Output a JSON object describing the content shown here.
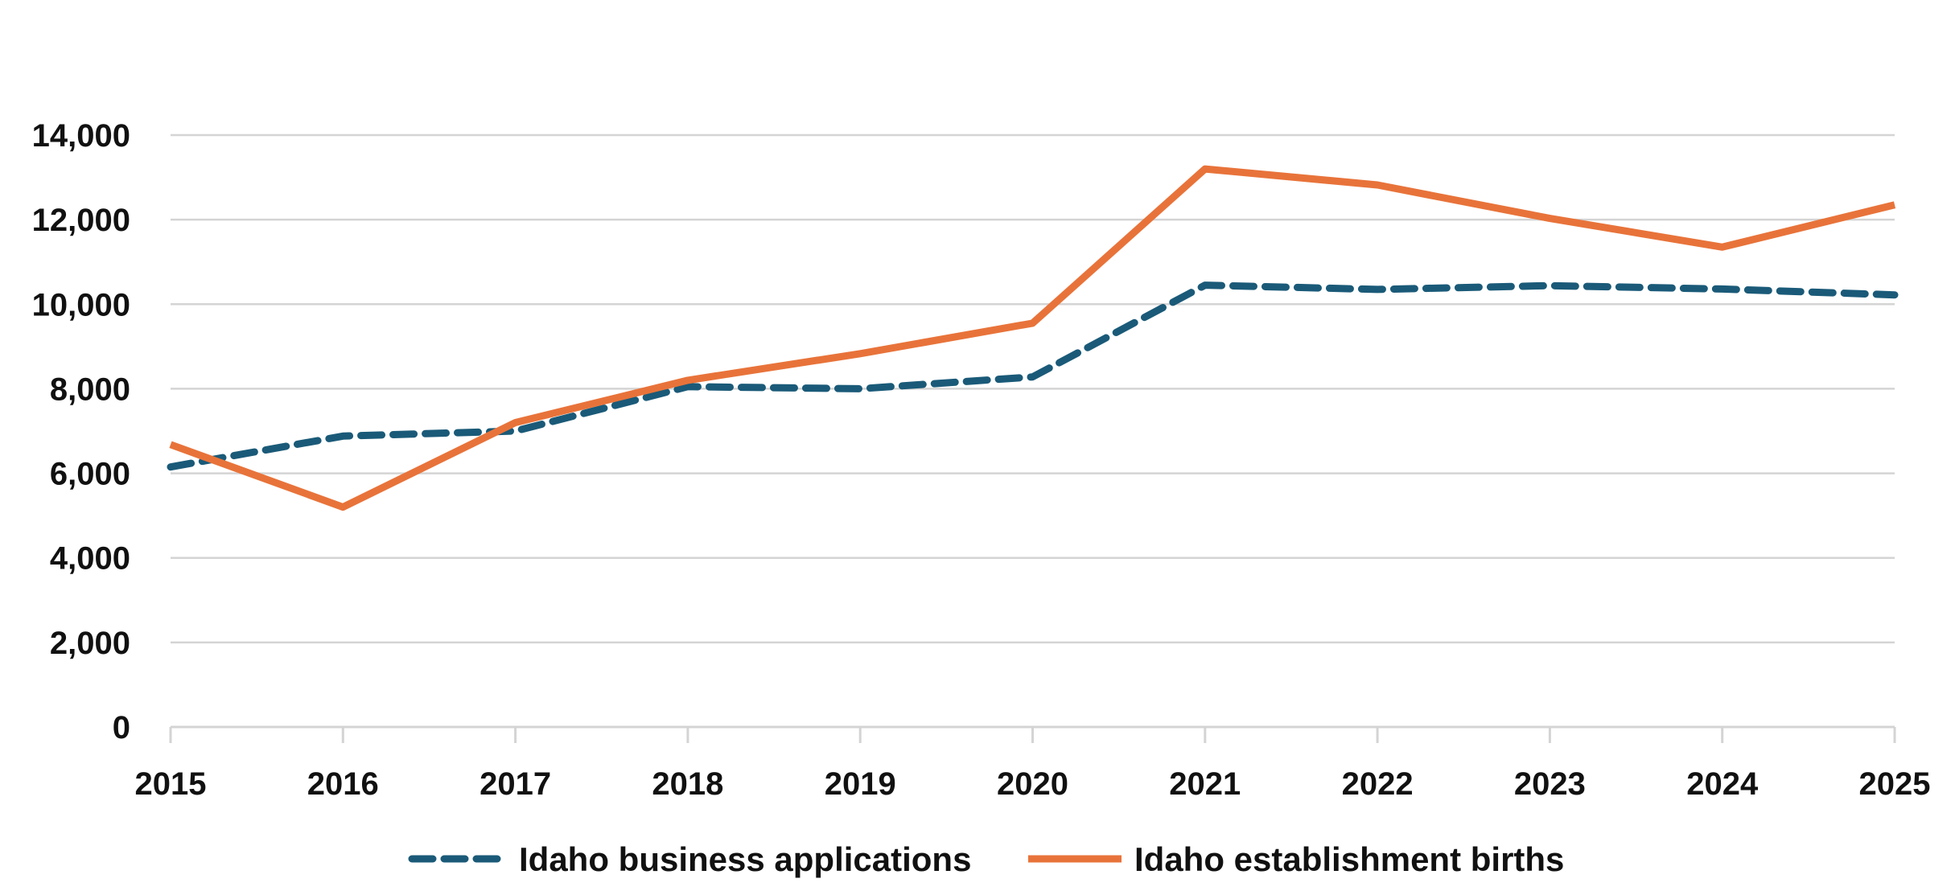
{
  "chart_data": {
    "type": "line",
    "x": [
      "2015",
      "2016",
      "2017",
      "2018",
      "2019",
      "2020",
      "2021",
      "2022",
      "2023",
      "2024",
      "2025"
    ],
    "series": [
      {
        "name": "Idaho business applications",
        "color": "#1a5a78",
        "style": "dashed",
        "values": [
          6150,
          6880,
          7000,
          8050,
          8000,
          8280,
          10450,
          10350,
          10440,
          10360,
          10220
        ]
      },
      {
        "name": "Idaho establishment births",
        "color": "#e8733a",
        "style": "solid",
        "values": [
          6680,
          5200,
          7200,
          8200,
          8830,
          9550,
          13200,
          12820,
          12030,
          11350,
          12350
        ]
      }
    ],
    "yticks": [
      "0",
      "2,000",
      "4,000",
      "6,000",
      "8,000",
      "10,000",
      "12,000",
      "14,000"
    ],
    "ylim": [
      0,
      14000
    ],
    "grid": true,
    "legend_position": "bottom"
  }
}
